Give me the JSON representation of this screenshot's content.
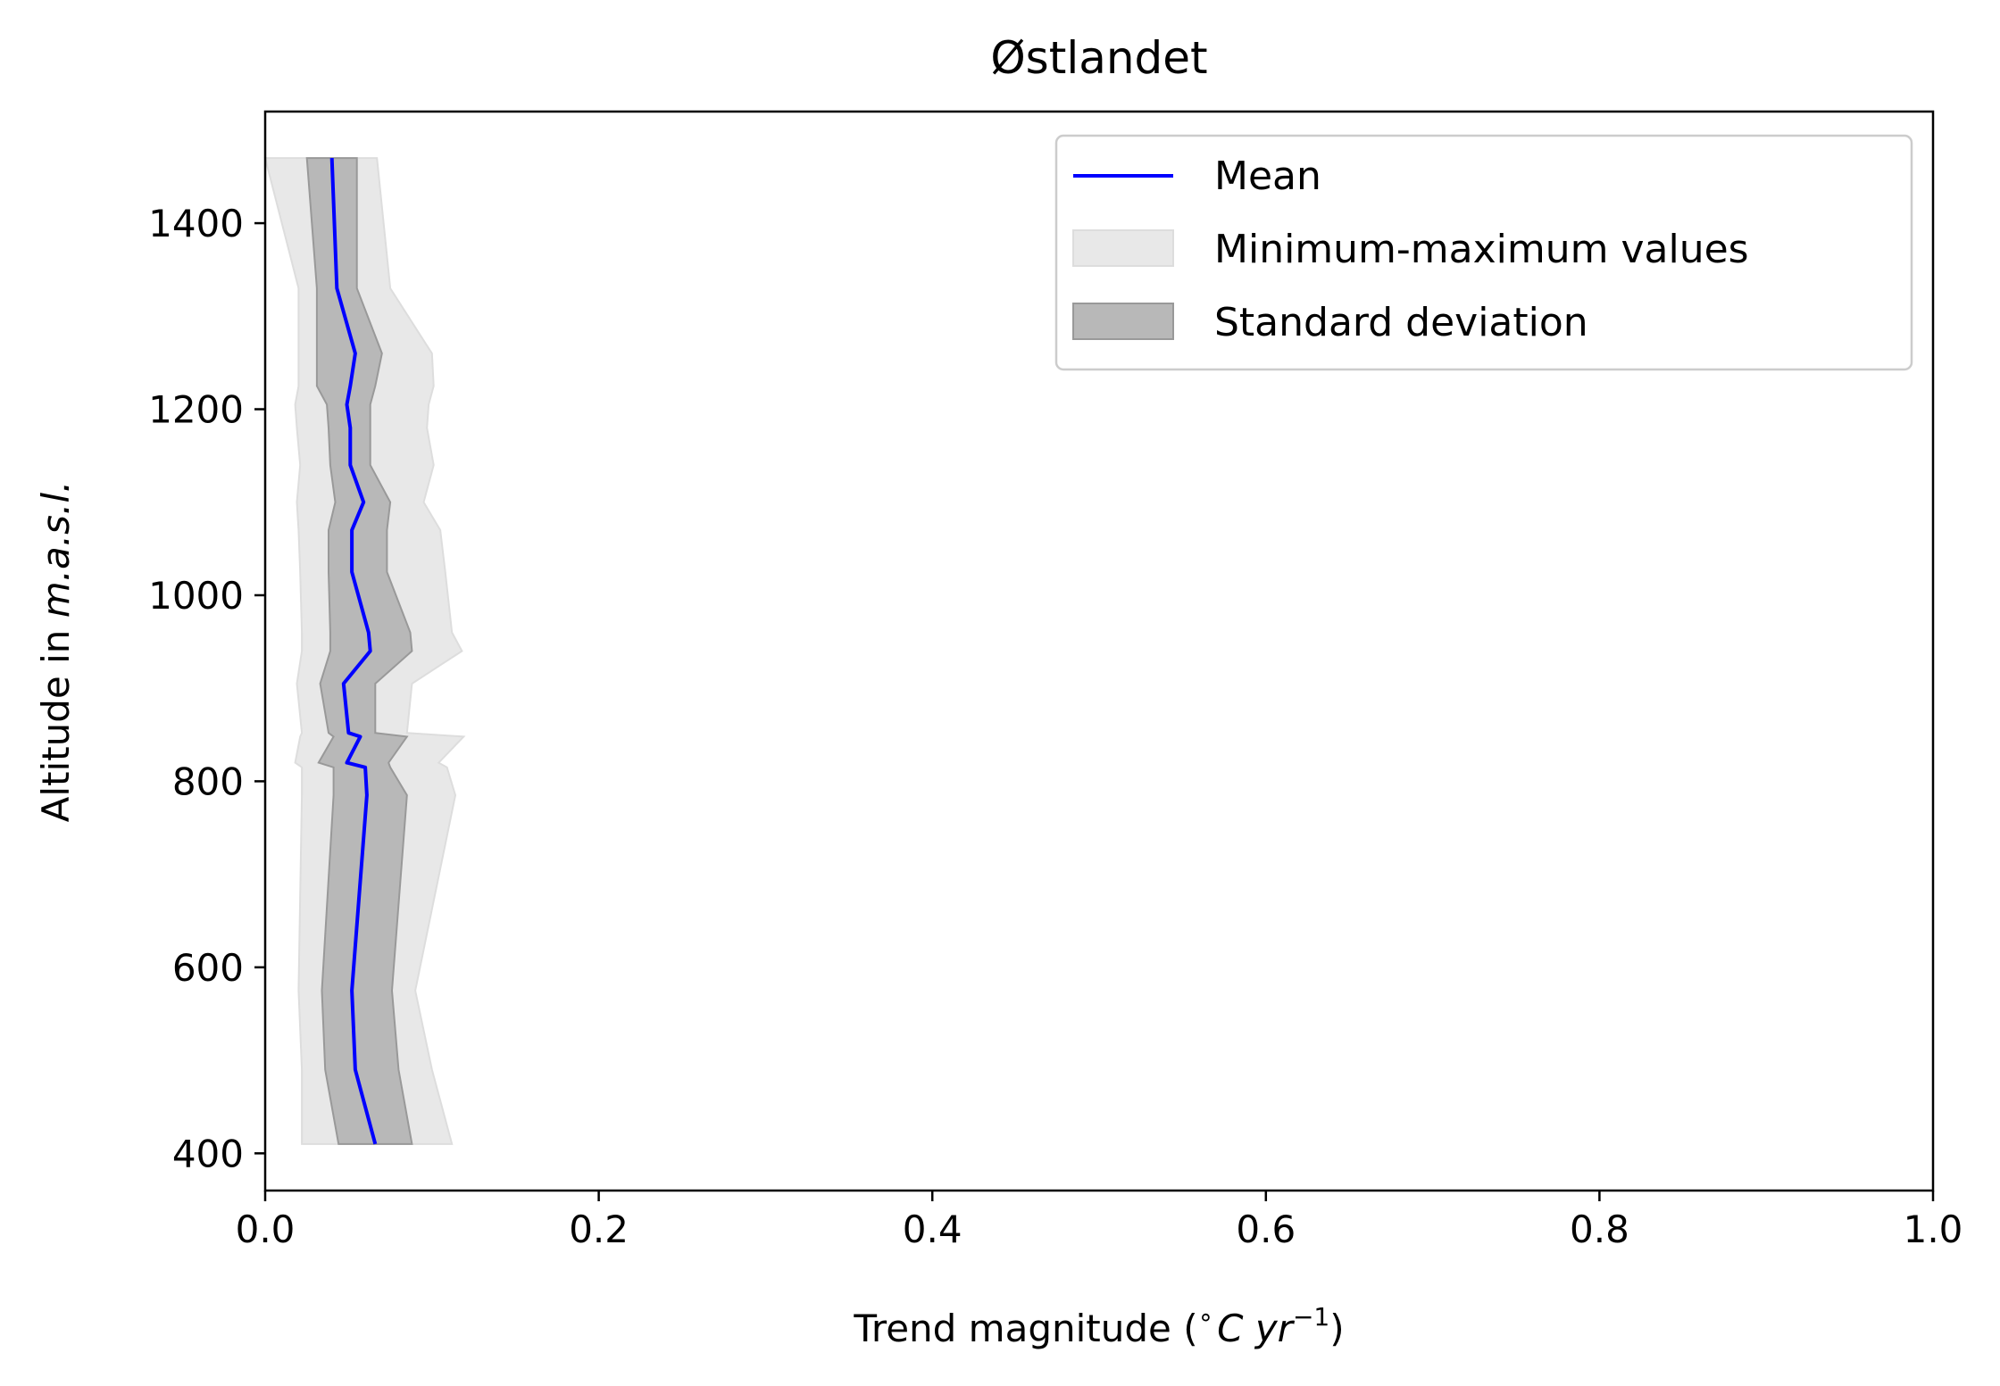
{
  "chart_data": {
    "type": "line",
    "title": "Østlandet",
    "xlabel": {
      "prefix": "Trend magnitude (",
      "sup_deg": "∘",
      "unit_c": "C",
      "unit_yr": "yr",
      "sup_exp": "−1",
      "suffix": ")"
    },
    "ylabel": {
      "prefix": "Altitude in ",
      "unit": "m.a.s.l."
    },
    "xlim": [
      0.0,
      1.0
    ],
    "ylim": [
      360,
      1520
    ],
    "xticks": [
      "0.0",
      "0.2",
      "0.4",
      "0.6",
      "0.8",
      "1.0"
    ],
    "yticks": [
      "400",
      "600",
      "800",
      "1000",
      "1200",
      "1400"
    ],
    "legend_position": "upper-right",
    "legend": {
      "mean": "Mean",
      "minmax": "Minimum-maximum values",
      "std": "Standard deviation"
    },
    "colors": {
      "mean": "#0000ff",
      "minmax_fill": "#e8e8e8",
      "minmax_edge": "#dddddd",
      "std_fill": "#b8b8b8",
      "std_edge": "#999999"
    },
    "altitude": [
      410,
      490,
      575,
      785,
      815,
      820,
      848,
      852,
      905,
      940,
      960,
      1025,
      1070,
      1100,
      1140,
      1180,
      1205,
      1225,
      1260,
      1330,
      1470
    ],
    "mean": [
      0.066,
      0.054,
      0.052,
      0.061,
      0.06,
      0.049,
      0.057,
      0.05,
      0.047,
      0.063,
      0.062,
      0.052,
      0.052,
      0.059,
      0.051,
      0.051,
      0.049,
      0.051,
      0.054,
      0.043,
      0.04
    ],
    "std_lower": [
      0.044,
      0.036,
      0.034,
      0.041,
      0.041,
      0.032,
      0.041,
      0.038,
      0.033,
      0.039,
      0.039,
      0.038,
      0.038,
      0.042,
      0.039,
      0.038,
      0.037,
      0.031,
      0.031,
      0.031,
      0.025
    ],
    "std_upper": [
      0.088,
      0.08,
      0.076,
      0.085,
      0.075,
      0.074,
      0.085,
      0.066,
      0.066,
      0.088,
      0.087,
      0.073,
      0.073,
      0.075,
      0.063,
      0.063,
      0.063,
      0.066,
      0.07,
      0.055,
      0.055
    ],
    "min": [
      0.022,
      0.022,
      0.02,
      0.022,
      0.022,
      0.018,
      0.021,
      0.022,
      0.019,
      0.022,
      0.022,
      0.021,
      0.02,
      0.019,
      0.021,
      0.019,
      0.018,
      0.02,
      0.02,
      0.02,
      0.0
    ],
    "max": [
      0.112,
      0.1,
      0.09,
      0.114,
      0.109,
      0.104,
      0.119,
      0.085,
      0.088,
      0.118,
      0.112,
      0.108,
      0.105,
      0.095,
      0.101,
      0.097,
      0.098,
      0.101,
      0.1,
      0.075,
      0.067
    ]
  }
}
